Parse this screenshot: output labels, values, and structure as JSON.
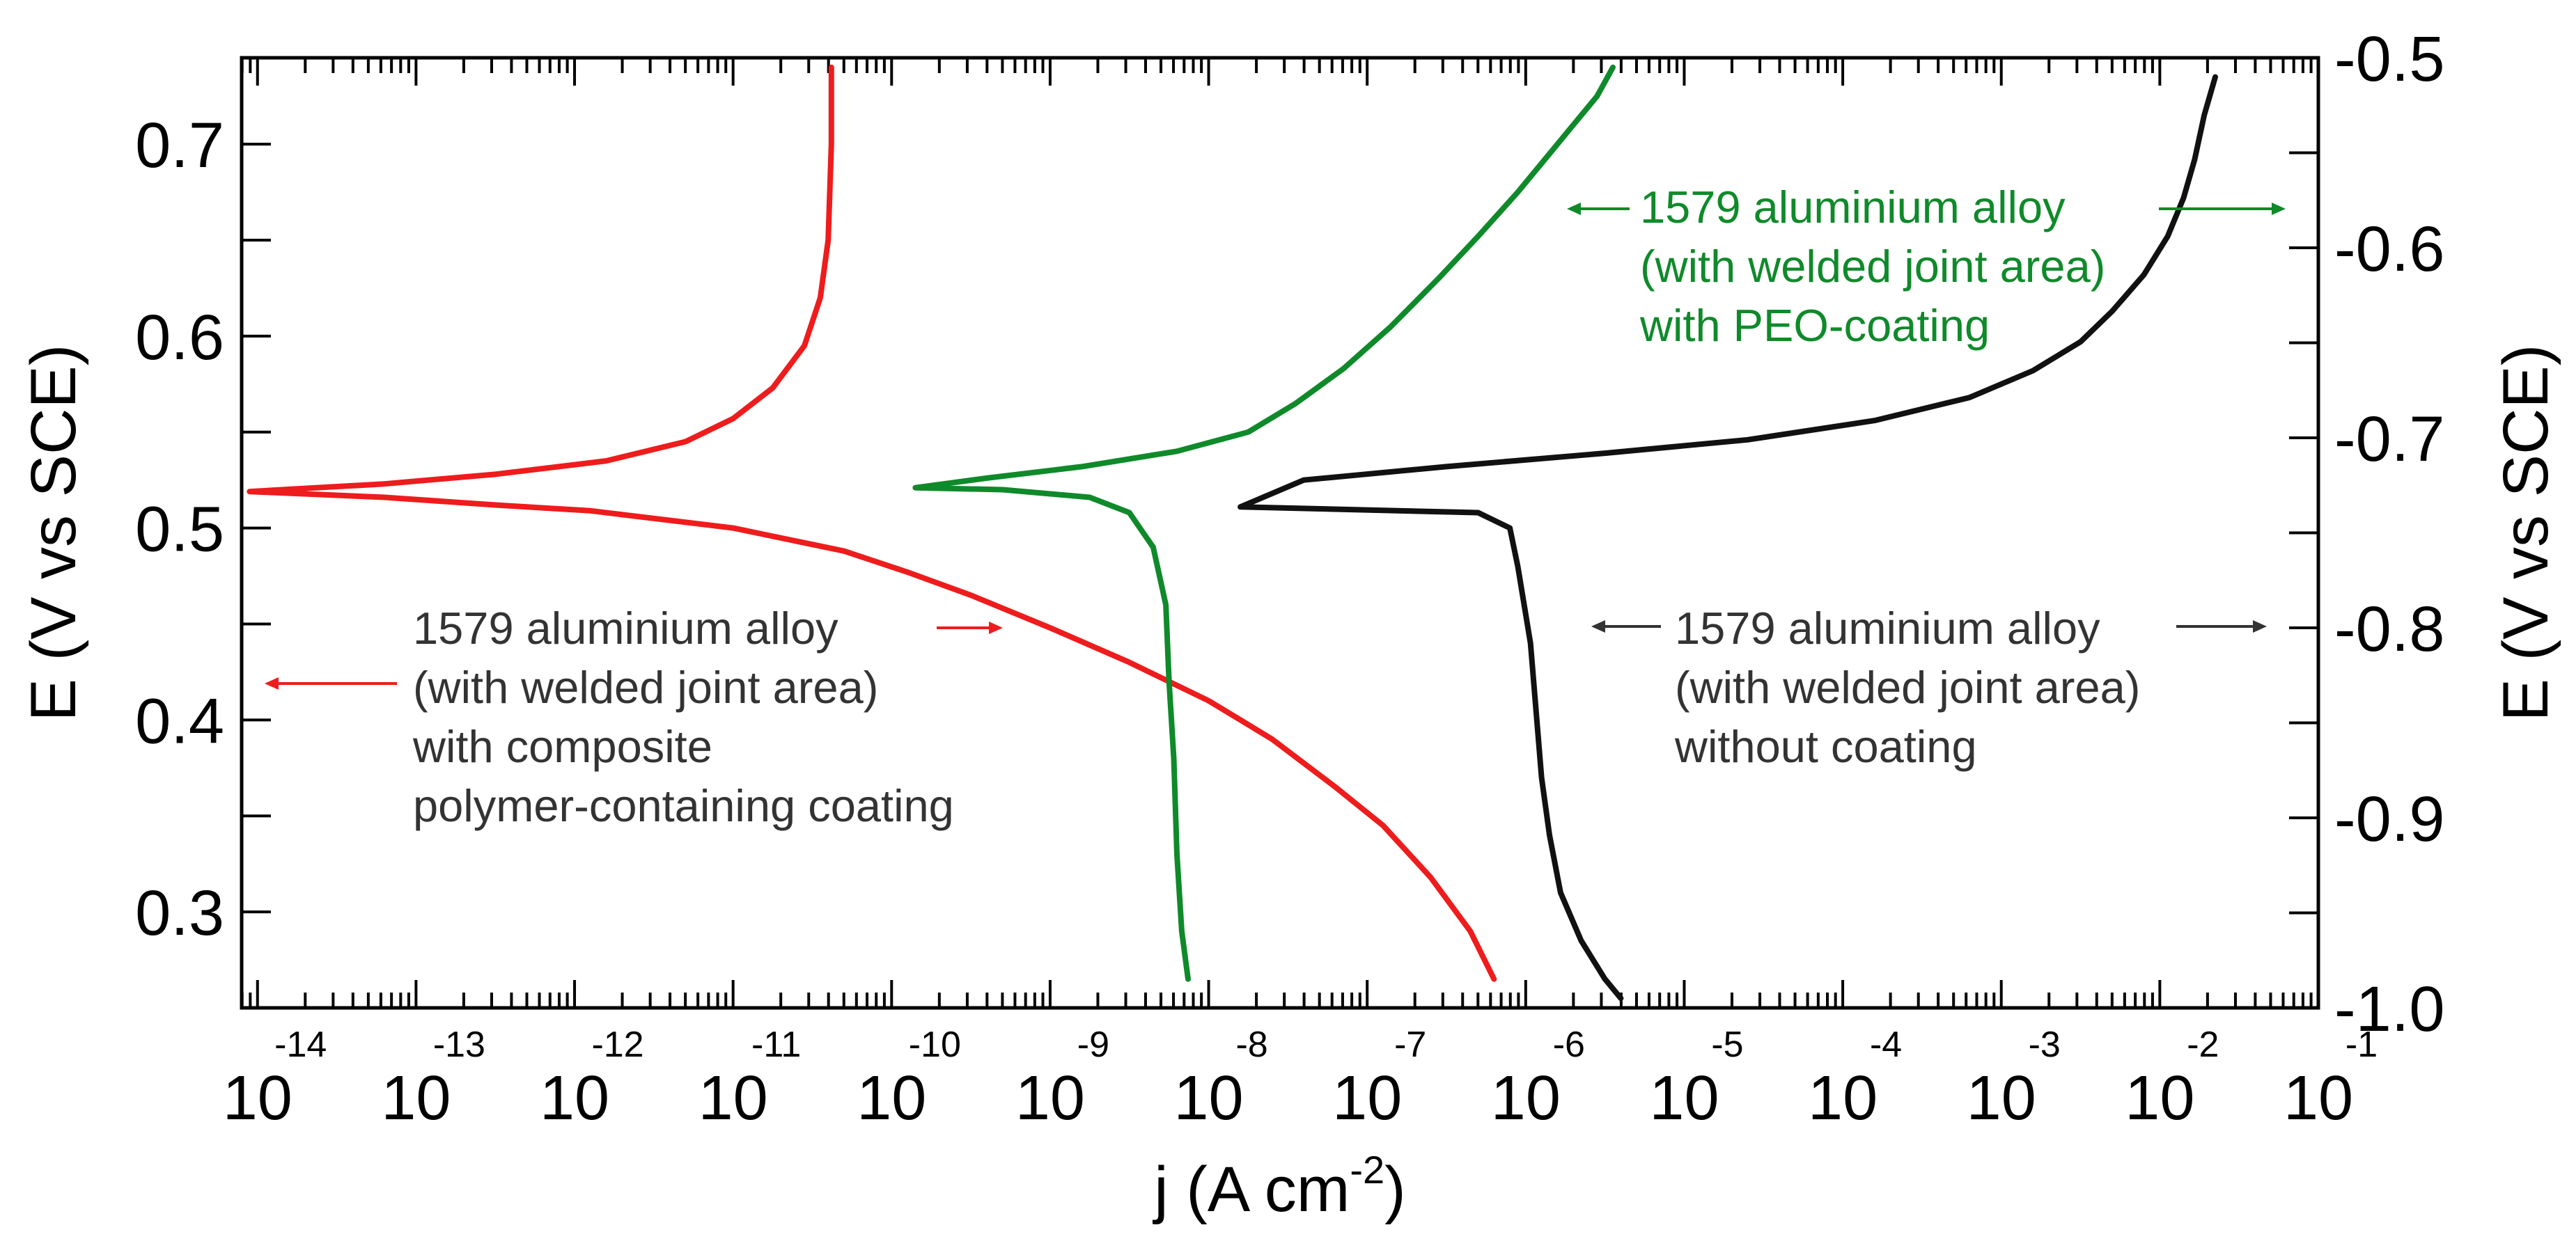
{
  "chart_data": {
    "type": "line",
    "x_scale": "log",
    "xlabel": {
      "base": "j (A cm",
      "sup": "-2",
      "close": ")"
    },
    "ylabel_left": "E (V vs SCE)",
    "ylabel_right": "E (V vs SCE)",
    "xlim_exp": [
      -14.1,
      -1
    ],
    "ylim_left": [
      0.25,
      0.745
    ],
    "ylim_right": [
      -1.0,
      -0.5
    ],
    "x_ticks": [
      {
        "base": "10",
        "exp": "-14",
        "value": -14
      },
      {
        "base": "10",
        "exp": "-13",
        "value": -13
      },
      {
        "base": "10",
        "exp": "-12",
        "value": -12
      },
      {
        "base": "10",
        "exp": "-11",
        "value": -11
      },
      {
        "base": "10",
        "exp": "-10",
        "value": -10
      },
      {
        "base": "10",
        "exp": "-9",
        "value": -9
      },
      {
        "base": "10",
        "exp": "-8",
        "value": -8
      },
      {
        "base": "10",
        "exp": "-7",
        "value": -7
      },
      {
        "base": "10",
        "exp": "-6",
        "value": -6
      },
      {
        "base": "10",
        "exp": "-5",
        "value": -5
      },
      {
        "base": "10",
        "exp": "-4",
        "value": -4
      },
      {
        "base": "10",
        "exp": "-3",
        "value": -3
      },
      {
        "base": "10",
        "exp": "-2",
        "value": -2
      },
      {
        "base": "10",
        "exp": "-1",
        "value": -1
      }
    ],
    "y_ticks_left": [
      {
        "label": "0.3",
        "value": 0.3
      },
      {
        "label": "0.4",
        "value": 0.4
      },
      {
        "label": "0.5",
        "value": 0.5
      },
      {
        "label": "0.6",
        "value": 0.6
      },
      {
        "label": "0.7",
        "value": 0.7
      }
    ],
    "y_minor_left": [
      0.35,
      0.45,
      0.55,
      0.65
    ],
    "y_ticks_right": [
      {
        "label": "-0.5",
        "value": -0.5
      },
      {
        "label": "-0.6",
        "value": -0.6
      },
      {
        "label": "-0.7",
        "value": -0.7
      },
      {
        "label": "-0.8",
        "value": -0.8
      },
      {
        "label": "-0.9",
        "value": -0.9
      },
      {
        "label": "-1.0",
        "value": -1.0
      }
    ],
    "y_minor_right": [
      -0.55,
      -0.65,
      -0.75,
      -0.85,
      -0.95
    ],
    "series": [
      {
        "name": "composite",
        "color": "#ee1c1c",
        "axis": "left",
        "points": [
          [
            -10.38,
            0.74
          ],
          [
            -10.38,
            0.7
          ],
          [
            -10.4,
            0.65
          ],
          [
            -10.45,
            0.62
          ],
          [
            -10.55,
            0.595
          ],
          [
            -10.75,
            0.573
          ],
          [
            -11.0,
            0.557
          ],
          [
            -11.3,
            0.545
          ],
          [
            -11.8,
            0.535
          ],
          [
            -12.5,
            0.528
          ],
          [
            -13.2,
            0.523
          ],
          [
            -14.05,
            0.519
          ],
          [
            -13.2,
            0.516
          ],
          [
            -12.5,
            0.512
          ],
          [
            -11.9,
            0.509
          ],
          [
            -11.0,
            0.5
          ],
          [
            -10.3,
            0.488
          ],
          [
            -9.9,
            0.477
          ],
          [
            -9.5,
            0.465
          ],
          [
            -9.0,
            0.448
          ],
          [
            -8.5,
            0.43
          ],
          [
            -8.0,
            0.41
          ],
          [
            -7.6,
            0.39
          ],
          [
            -7.2,
            0.365
          ],
          [
            -6.9,
            0.345
          ],
          [
            -6.6,
            0.318
          ],
          [
            -6.35,
            0.29
          ],
          [
            -6.2,
            0.265
          ]
        ]
      },
      {
        "name": "peo",
        "color": "#0f8a2a",
        "axis": "left",
        "points": [
          [
            -5.45,
            0.74
          ],
          [
            -5.55,
            0.725
          ],
          [
            -5.7,
            0.71
          ],
          [
            -5.85,
            0.695
          ],
          [
            -6.05,
            0.675
          ],
          [
            -6.3,
            0.652
          ],
          [
            -6.55,
            0.63
          ],
          [
            -6.85,
            0.605
          ],
          [
            -7.15,
            0.583
          ],
          [
            -7.45,
            0.565
          ],
          [
            -7.75,
            0.55
          ],
          [
            -8.2,
            0.54
          ],
          [
            -8.8,
            0.532
          ],
          [
            -9.4,
            0.526
          ],
          [
            -9.85,
            0.521
          ],
          [
            -9.3,
            0.52
          ],
          [
            -8.75,
            0.516
          ],
          [
            -8.5,
            0.508
          ],
          [
            -8.35,
            0.49
          ],
          [
            -8.27,
            0.46
          ],
          [
            -8.25,
            0.42
          ],
          [
            -8.22,
            0.38
          ],
          [
            -8.2,
            0.33
          ],
          [
            -8.17,
            0.29
          ],
          [
            -8.13,
            0.265
          ]
        ]
      },
      {
        "name": "uncoated",
        "color": "#111111",
        "axis": "left",
        "points": [
          [
            -1.65,
            0.735
          ],
          [
            -1.72,
            0.715
          ],
          [
            -1.78,
            0.692
          ],
          [
            -1.85,
            0.672
          ],
          [
            -1.95,
            0.652
          ],
          [
            -2.1,
            0.632
          ],
          [
            -2.3,
            0.613
          ],
          [
            -2.5,
            0.597
          ],
          [
            -2.8,
            0.582
          ],
          [
            -3.2,
            0.568
          ],
          [
            -3.8,
            0.556
          ],
          [
            -4.6,
            0.546
          ],
          [
            -5.5,
            0.539
          ],
          [
            -6.5,
            0.532
          ],
          [
            -7.4,
            0.525
          ],
          [
            -7.8,
            0.511
          ],
          [
            -6.3,
            0.508
          ],
          [
            -6.1,
            0.5
          ],
          [
            -6.05,
            0.48
          ],
          [
            -5.97,
            0.44
          ],
          [
            -5.93,
            0.4
          ],
          [
            -5.9,
            0.37
          ],
          [
            -5.85,
            0.34
          ],
          [
            -5.78,
            0.31
          ],
          [
            -5.65,
            0.285
          ],
          [
            -5.5,
            0.265
          ],
          [
            -5.4,
            0.255
          ]
        ]
      }
    ],
    "annotations": [
      {
        "name": "annotation-composite",
        "color": "#333333",
        "arrow_color": "#ee1c1c",
        "lines": [
          "1579 aluminium alloy",
          "(with welded joint area)",
          "with composite",
          "polymer-containing coating"
        ]
      },
      {
        "name": "annotation-peo",
        "color": "#0f8a2a",
        "arrow_color": "#0f8a2a",
        "lines": [
          "1579 aluminium alloy",
          "(with welded joint area)",
          "with PEO-coating"
        ]
      },
      {
        "name": "annotation-uncoated",
        "color": "#333333",
        "arrow_color": "#333333",
        "lines": [
          "1579 aluminium alloy",
          "(with welded joint area)",
          "without coating"
        ]
      }
    ]
  }
}
